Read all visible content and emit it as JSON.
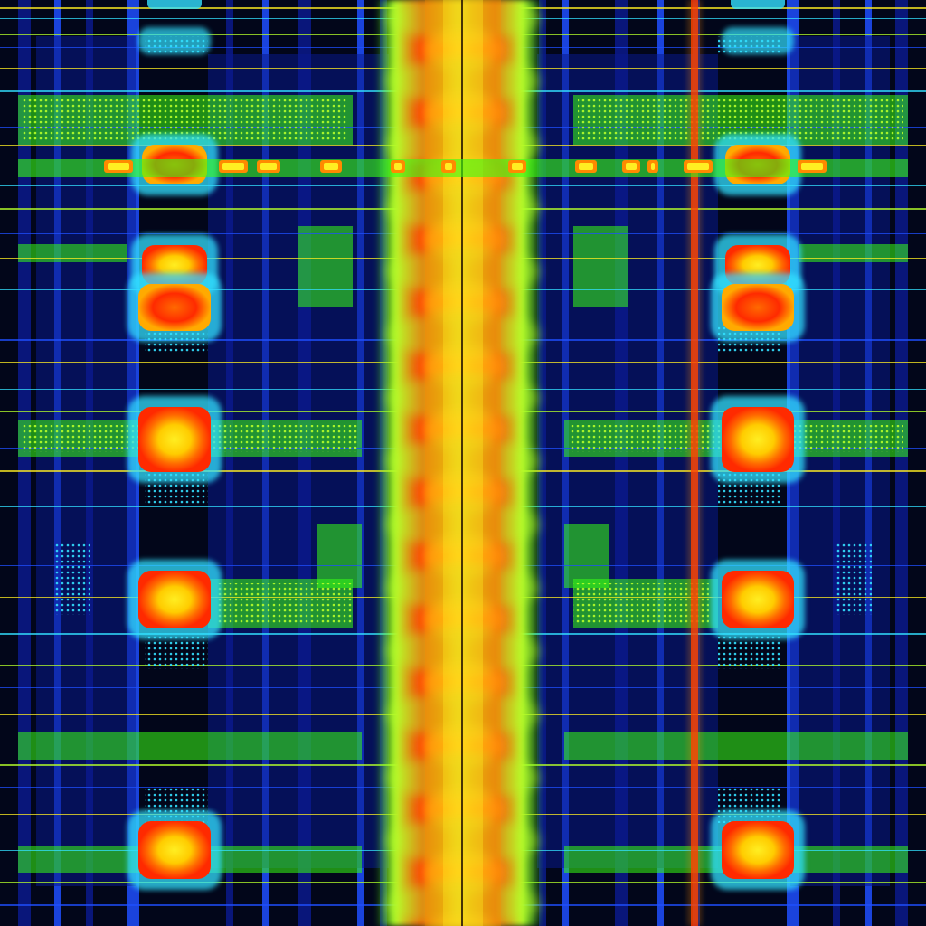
{
  "image": {
    "description_visible_text": "",
    "palette": {
      "background": "#02061a",
      "deep_blue": "#0a1a8c",
      "blue": "#1f4fff",
      "cyan": "#33e0ff",
      "green": "#39ff14",
      "lime": "#b6ff2a",
      "yellow": "#ffee22",
      "orange": "#ff8a00",
      "red": "#ff2a00"
    },
    "symmetry": "mirrored-vertical-axis",
    "hot_nodes": {
      "left_column_count": 6,
      "right_column_count": 6
    }
  }
}
